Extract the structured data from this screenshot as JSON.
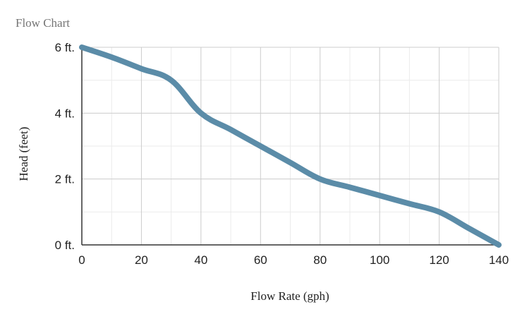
{
  "chart_data": {
    "type": "line",
    "title": "Flow Chart",
    "xlabel": "Flow Rate (gph)",
    "ylabel": "Head (feet)",
    "xlim": [
      0,
      140
    ],
    "ylim": [
      0,
      6
    ],
    "x_ticks": [
      0,
      20,
      40,
      60,
      80,
      100,
      120,
      140
    ],
    "x_tick_labels": [
      "0",
      "20",
      "40",
      "60",
      "80",
      "100",
      "120",
      "140"
    ],
    "y_ticks": [
      0,
      2,
      4,
      6
    ],
    "y_tick_labels": [
      "0 ft.",
      "2 ft.",
      "4 ft.",
      "6 ft."
    ],
    "x_minor_step": 10,
    "y_minor_step": 1,
    "grid": true,
    "legend": "none",
    "series": [
      {
        "name": "Head",
        "color": "#5b8ca8",
        "x": [
          0,
          10,
          20,
          30,
          40,
          50,
          60,
          70,
          80,
          90,
          100,
          110,
          120,
          130,
          140
        ],
        "values": [
          6,
          5.7,
          5.35,
          5,
          4,
          3.5,
          3,
          2.5,
          2,
          1.75,
          1.5,
          1.25,
          1,
          0.5,
          0
        ]
      }
    ]
  },
  "colors": {
    "title": "#757575",
    "text": "#222222",
    "major_grid": "#cccccc",
    "minor_grid": "#ebebeb",
    "axis": "#333333"
  }
}
